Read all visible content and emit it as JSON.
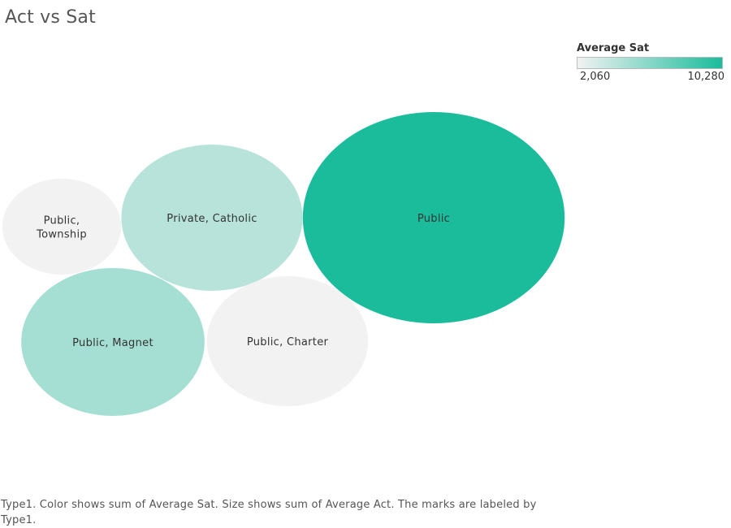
{
  "chart_data": {
    "type": "bubble",
    "title": "Act vs Sat",
    "color_legend": {
      "title": "Average Sat",
      "min_label": "2,060",
      "max_label": "10,280",
      "min_color": "#f2f2f2",
      "max_color": "#1abc9c",
      "placement": "top-right"
    },
    "bubbles": [
      {
        "category": "Public",
        "label_lines": [
          "Public"
        ],
        "sat": 10280,
        "act": 1000
      },
      {
        "category": "Private, Catholic",
        "label_lines": [
          "Private, Catholic"
        ],
        "sat": 4300,
        "act": 490
      },
      {
        "category": "Public, Magnet",
        "label_lines": [
          "Public, Magnet"
        ],
        "sat": 5000,
        "act": 500
      },
      {
        "category": "Public, Charter",
        "label_lines": [
          "Public, Charter"
        ],
        "sat": 2060,
        "act": 390
      },
      {
        "category": "Public, Township",
        "label_lines": [
          "Public,",
          "Township"
        ],
        "sat": 2060,
        "act": 220
      }
    ],
    "caption": "Type1.  Color shows sum of Average Sat.  Size shows sum of Average Act.  The marks are labeled by Type1."
  }
}
